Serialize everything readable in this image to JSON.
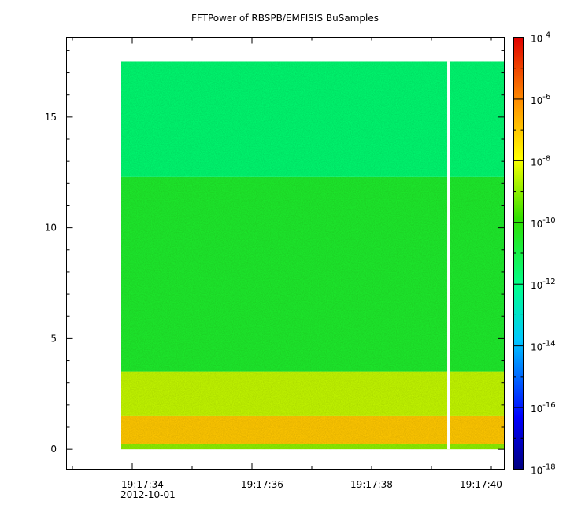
{
  "chart_data": {
    "type": "heatmap",
    "title": "FFTPower of RBSPB/EMFISIS  BuSamples",
    "xlabel": "",
    "ylabel": "",
    "x_ticks": [
      "19:17:34",
      "19:17:36",
      "19:17:38",
      "19:17:40"
    ],
    "x_date_label": "2012-10-01",
    "y_ticks": [
      0,
      5,
      10,
      15
    ],
    "ylim": [
      -0.9,
      18.6
    ],
    "data_y_range": [
      0,
      17.5
    ],
    "gap_time_fraction": 0.855,
    "colorbar": {
      "scale": "log",
      "range": [
        1e-18,
        0.0001
      ],
      "tick_bases": [
        "10",
        "10",
        "10",
        "10",
        "10",
        "10",
        "10",
        "10"
      ],
      "tick_exponents": [
        "-4",
        "-6",
        "-8",
        "-10",
        "-12",
        "-14",
        "-16",
        "-18"
      ]
    },
    "bands": [
      {
        "y_from": 0.0,
        "y_to": 0.25,
        "log10_power": -9.0
      },
      {
        "y_from": 0.25,
        "y_to": 1.5,
        "log10_power": -7.0
      },
      {
        "y_from": 1.5,
        "y_to": 3.5,
        "log10_power": -8.5
      },
      {
        "y_from": 3.5,
        "y_to": 12.3,
        "log10_power": -10.6
      },
      {
        "y_from": 12.3,
        "y_to": 17.5,
        "log10_power": -11.6
      }
    ]
  }
}
